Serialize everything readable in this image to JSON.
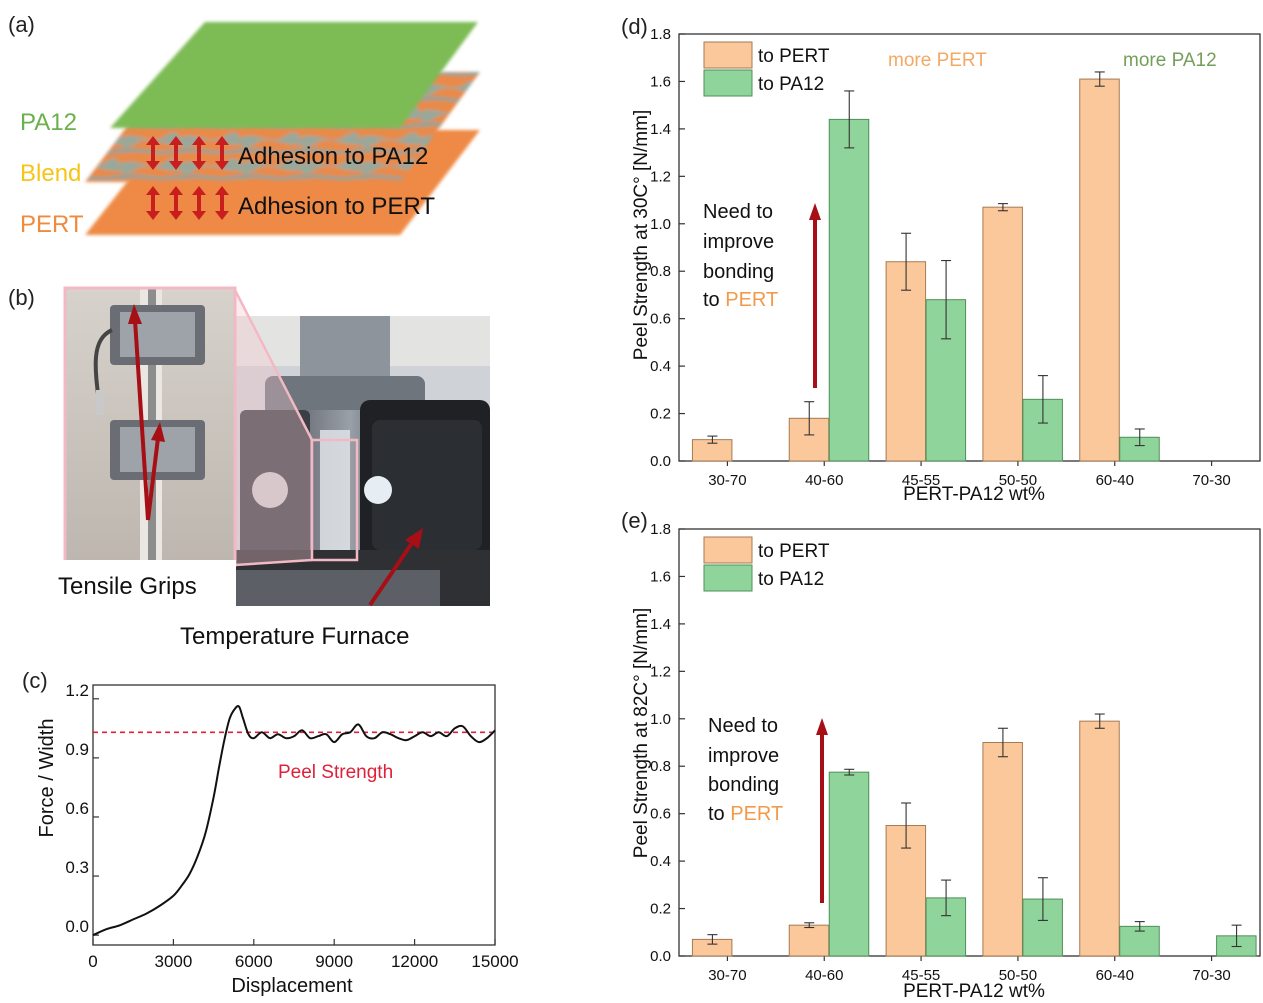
{
  "panels": {
    "a": {
      "label": "(a)"
    },
    "b": {
      "label": "(b)"
    },
    "c": {
      "label": "(c)"
    },
    "d": {
      "label": "(d)"
    },
    "e": {
      "label": "(e)"
    }
  },
  "layers": {
    "pa12": {
      "label": "PA12",
      "color": "#6ab04c"
    },
    "blend": {
      "label": "Blend",
      "color": "#f5c518"
    },
    "pert": {
      "label": "PERT",
      "color": "#f08a3c"
    },
    "adhesion_pa12": "Adhesion to PA12",
    "adhesion_pert": "Adhesion to PERT"
  },
  "photo": {
    "tensile_grips": "Tensile Grips",
    "temperature_furnace": "Temperature Furnace"
  },
  "colors": {
    "pert": "#fbc89b",
    "pa12": "#8fd49a",
    "arrow": "#a50f15",
    "peel_line": "#e0203a",
    "pert_text": "#f39a4a",
    "pa12_text": "#5b8f3e"
  },
  "chart_data": [
    {
      "id": "c",
      "type": "line",
      "xlabel": "Displacement",
      "ylabel": "Force / Width",
      "xlim": [
        0,
        15000
      ],
      "ylim": [
        -0.05,
        1.27
      ],
      "xticks": [
        0,
        3000,
        6000,
        9000,
        12000,
        15000
      ],
      "yticks": [
        0.0,
        0.3,
        0.6,
        0.9,
        1.2
      ],
      "annotation": "Peel Strength",
      "peel_strength": 1.03,
      "x": [
        0,
        500,
        1000,
        1500,
        2000,
        2500,
        3000,
        3300,
        3600,
        3900,
        4200,
        4500,
        4700,
        4900,
        5100,
        5300,
        5450,
        5600,
        5800,
        6000,
        6300,
        6600,
        6900,
        7200,
        7500,
        7800,
        8100,
        8400,
        8700,
        9000,
        9300,
        9600,
        9900,
        10200,
        10500,
        10800,
        11100,
        11400,
        11700,
        12000,
        12300,
        12600,
        12900,
        13200,
        13500,
        13800,
        14100,
        14400,
        14700,
        15000
      ],
      "y": [
        0.0,
        0.03,
        0.05,
        0.08,
        0.11,
        0.15,
        0.2,
        0.25,
        0.31,
        0.4,
        0.52,
        0.7,
        0.85,
        0.99,
        1.1,
        1.15,
        1.16,
        1.1,
        1.02,
        1.0,
        1.03,
        1.0,
        1.02,
        1.0,
        1.01,
        1.04,
        1.0,
        1.01,
        1.02,
        0.98,
        1.02,
        1.03,
        1.07,
        1.01,
        1.0,
        1.03,
        1.02,
        1.0,
        0.99,
        1.01,
        1.03,
        1.01,
        1.03,
        1.01,
        1.05,
        1.06,
        1.01,
        0.98,
        1.0,
        1.04
      ]
    },
    {
      "id": "d",
      "type": "bar",
      "categories": [
        "30-70",
        "40-60",
        "45-55",
        "50-50",
        "60-40",
        "70-30"
      ],
      "xlabel": "PERT-PA12 wt%",
      "ylabel": "Peel Strength at 30C° [N/mm]",
      "ylim": [
        0,
        1.8
      ],
      "yticks": [
        0.0,
        0.2,
        0.4,
        0.6,
        0.8,
        1.0,
        1.2,
        1.4,
        1.6,
        1.8
      ],
      "legend_position": "top-left",
      "series": [
        {
          "name": "to PERT",
          "values": [
            0.09,
            0.18,
            0.84,
            1.07,
            1.61,
            null
          ],
          "errors": [
            0.015,
            0.07,
            0.12,
            0.015,
            0.03,
            null
          ]
        },
        {
          "name": "to PA12",
          "values": [
            null,
            1.44,
            0.68,
            0.26,
            0.1,
            null
          ],
          "errors": [
            null,
            0.12,
            0.165,
            0.1,
            0.035,
            null
          ]
        }
      ],
      "note_left": "more PERT",
      "note_right": "more PA12",
      "annotation": {
        "line1": "Need to",
        "line2": "improve",
        "line3": "bonding",
        "line4_prefix": "to",
        "line4_highlight": "PERT"
      }
    },
    {
      "id": "e",
      "type": "bar",
      "categories": [
        "30-70",
        "40-60",
        "45-55",
        "50-50",
        "60-40",
        "70-30"
      ],
      "xlabel": "PERT-PA12 wt%",
      "ylabel": "Peel Strength at 82C° [N/mm]",
      "ylim": [
        0,
        1.8
      ],
      "yticks": [
        0.0,
        0.2,
        0.4,
        0.6,
        0.8,
        1.0,
        1.2,
        1.4,
        1.6,
        1.8
      ],
      "legend_position": "top-left",
      "series": [
        {
          "name": "to PERT",
          "values": [
            0.07,
            0.13,
            0.55,
            0.9,
            0.99,
            null
          ],
          "errors": [
            0.02,
            0.01,
            0.095,
            0.06,
            0.03,
            null
          ]
        },
        {
          "name": "to PA12",
          "values": [
            null,
            0.775,
            0.245,
            0.24,
            0.125,
            0.085
          ],
          "errors": [
            null,
            0.012,
            0.075,
            0.09,
            0.02,
            0.045
          ]
        }
      ],
      "annotation": {
        "line1": "Need to",
        "line2": "improve",
        "line3": "bonding",
        "line4_prefix": "to",
        "line4_highlight": "PERT"
      }
    }
  ]
}
